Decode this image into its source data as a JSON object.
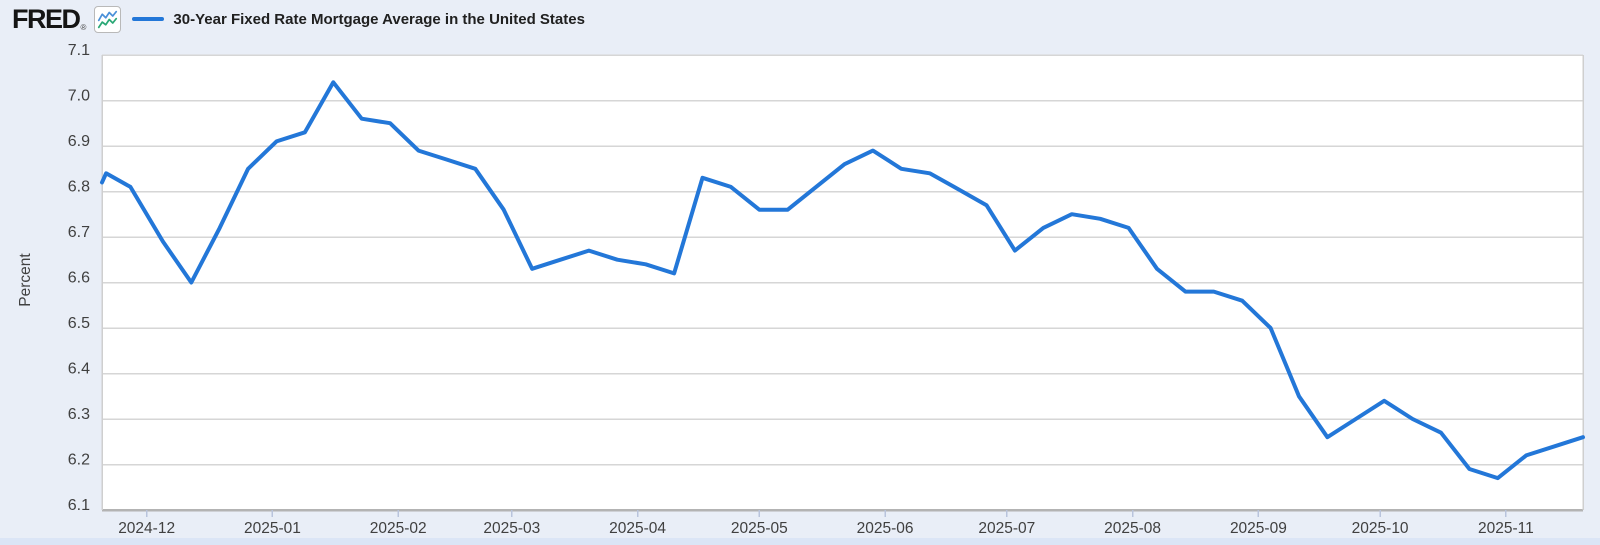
{
  "header": {
    "logo": "FRED",
    "registered_mark": "®",
    "icon": "fred-sparkline-icon",
    "legend": {
      "label": "30-Year Fixed Rate Mortgage Average in the United States"
    }
  },
  "colors": {
    "page_background": "#e9eef7",
    "plot_background": "#ffffff",
    "gridline": "#d6d6d6",
    "axis_bottom_line": "#b3b3b3",
    "plot_border": "#cfcfcf",
    "tick_mark": "#b9c4dc",
    "axis_text": "#404040",
    "line": "#2377d8",
    "bottom_strip": "#dbe5f6",
    "icon_line_blue": "#4a90d9",
    "icon_line_green": "#2aa876"
  },
  "chart_data": {
    "type": "line",
    "title": "30-Year Fixed Rate Mortgage Average in the United States",
    "xlabel": "",
    "ylabel": "Percent",
    "ylim": [
      6.1,
      7.1
    ],
    "grid": true,
    "legend_position": "top-left",
    "y_ticks": [
      "7.1",
      "7.0",
      "6.9",
      "6.8",
      "6.7",
      "6.6",
      "6.5",
      "6.4",
      "6.3",
      "6.2",
      "6.1"
    ],
    "x_domain": [
      "2024-11-20",
      "2025-11-20"
    ],
    "x_ticks": [
      {
        "label": "2024-12",
        "date": "2024-12-01"
      },
      {
        "label": "2025-01",
        "date": "2025-01-01"
      },
      {
        "label": "2025-02",
        "date": "2025-02-01"
      },
      {
        "label": "2025-03",
        "date": "2025-03-01"
      },
      {
        "label": "2025-04",
        "date": "2025-04-01"
      },
      {
        "label": "2025-05",
        "date": "2025-05-01"
      },
      {
        "label": "2025-06",
        "date": "2025-06-01"
      },
      {
        "label": "2025-07",
        "date": "2025-07-01"
      },
      {
        "label": "2025-08",
        "date": "2025-08-01"
      },
      {
        "label": "2025-09",
        "date": "2025-09-01"
      },
      {
        "label": "2025-10",
        "date": "2025-10-01"
      },
      {
        "label": "2025-11",
        "date": "2025-11-01"
      }
    ],
    "series": [
      {
        "name": "30-Year Fixed Rate Mortgage Average in the United States",
        "units": "Percent",
        "points": [
          [
            "2024-11-20",
            6.82
          ],
          [
            "2024-11-21",
            6.84
          ],
          [
            "2024-11-27",
            6.81
          ],
          [
            "2024-12-05",
            6.69
          ],
          [
            "2024-12-12",
            6.6
          ],
          [
            "2024-12-19",
            6.72
          ],
          [
            "2024-12-26",
            6.85
          ],
          [
            "2025-01-02",
            6.91
          ],
          [
            "2025-01-09",
            6.93
          ],
          [
            "2025-01-16",
            7.04
          ],
          [
            "2025-01-23",
            6.96
          ],
          [
            "2025-01-30",
            6.95
          ],
          [
            "2025-02-06",
            6.89
          ],
          [
            "2025-02-13",
            6.87
          ],
          [
            "2025-02-20",
            6.85
          ],
          [
            "2025-02-27",
            6.76
          ],
          [
            "2025-03-06",
            6.63
          ],
          [
            "2025-03-13",
            6.65
          ],
          [
            "2025-03-20",
            6.67
          ],
          [
            "2025-03-27",
            6.65
          ],
          [
            "2025-04-03",
            6.64
          ],
          [
            "2025-04-10",
            6.62
          ],
          [
            "2025-04-17",
            6.83
          ],
          [
            "2025-04-24",
            6.81
          ],
          [
            "2025-05-01",
            6.76
          ],
          [
            "2025-05-08",
            6.76
          ],
          [
            "2025-05-15",
            6.81
          ],
          [
            "2025-05-22",
            6.86
          ],
          [
            "2025-05-29",
            6.89
          ],
          [
            "2025-06-05",
            6.85
          ],
          [
            "2025-06-12",
            6.84
          ],
          [
            "2025-06-18",
            6.81
          ],
          [
            "2025-06-26",
            6.77
          ],
          [
            "2025-07-03",
            6.67
          ],
          [
            "2025-07-10",
            6.72
          ],
          [
            "2025-07-17",
            6.75
          ],
          [
            "2025-07-24",
            6.74
          ],
          [
            "2025-07-31",
            6.72
          ],
          [
            "2025-08-07",
            6.63
          ],
          [
            "2025-08-14",
            6.58
          ],
          [
            "2025-08-21",
            6.58
          ],
          [
            "2025-08-28",
            6.56
          ],
          [
            "2025-09-04",
            6.5
          ],
          [
            "2025-09-11",
            6.35
          ],
          [
            "2025-09-18",
            6.26
          ],
          [
            "2025-09-25",
            6.3
          ],
          [
            "2025-10-02",
            6.34
          ],
          [
            "2025-10-09",
            6.3
          ],
          [
            "2025-10-16",
            6.27
          ],
          [
            "2025-10-23",
            6.19
          ],
          [
            "2025-10-30",
            6.17
          ],
          [
            "2025-11-06",
            6.22
          ],
          [
            "2025-11-13",
            6.24
          ],
          [
            "2025-11-20",
            6.26
          ]
        ]
      }
    ]
  }
}
